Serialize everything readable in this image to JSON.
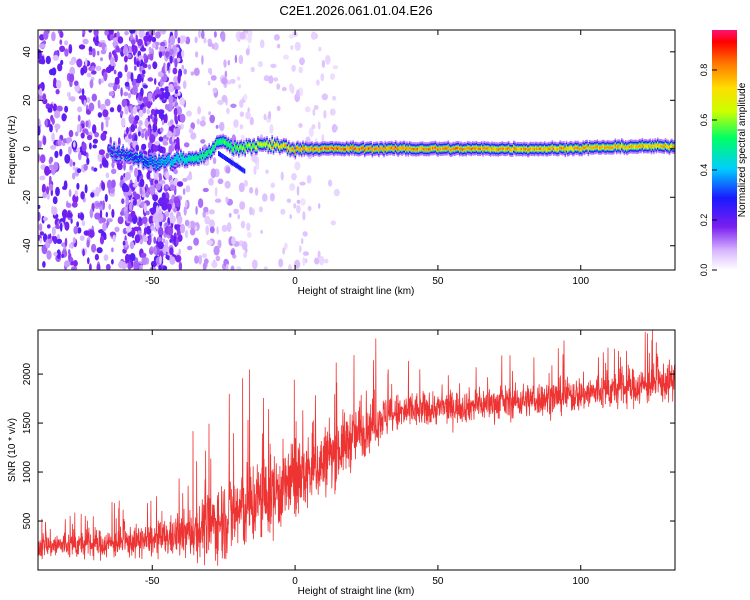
{
  "title": "C2E1.2026.061.01.04.E26",
  "chart_data": [
    {
      "type": "heatmap",
      "xlabel": "Height of straight line (km)",
      "ylabel": "Frequency (Hz)",
      "xlim": [
        -90,
        133
      ],
      "ylim": [
        -50,
        49
      ],
      "xticks": [
        -50,
        0,
        50,
        100
      ],
      "yticks": [
        -40,
        -20,
        0,
        20,
        40
      ],
      "xtick_labels": [
        "-50",
        "0",
        "50",
        "100"
      ],
      "ytick_labels": [
        "-40",
        "-20",
        "0",
        "20",
        "40"
      ],
      "colorbar": {
        "label": "Normalized spectral amplitude",
        "range": [
          0,
          0.96
        ],
        "ticks": [
          0.0,
          0.2,
          0.4,
          0.6,
          0.8
        ],
        "tick_labels": [
          "0.0",
          "0.2",
          "0.4",
          "0.6",
          "0.8"
        ]
      },
      "ridge": {
        "x": [
          -65,
          -58,
          -52,
          -48,
          -44,
          -40,
          -36,
          -32,
          -29,
          -27,
          -24,
          -21,
          -18,
          -15,
          -12,
          -8,
          -4,
          0,
          10,
          30,
          60,
          90,
          120,
          133
        ],
        "freq": [
          -1,
          -3,
          -5,
          -6,
          -5,
          -4,
          -4,
          -3,
          0,
          3,
          2,
          0,
          0,
          1,
          2,
          1,
          1,
          0,
          0,
          0,
          0,
          0,
          1,
          1
        ],
        "amplitude": [
          0.25,
          0.3,
          0.35,
          0.4,
          0.45,
          0.5,
          0.55,
          0.6,
          0.6,
          0.6,
          0.65,
          0.65,
          0.7,
          0.7,
          0.75,
          0.8,
          0.85,
          0.9,
          0.92,
          0.92,
          0.9,
          0.88,
          0.85,
          0.85
        ]
      }
    },
    {
      "type": "line",
      "xlabel": "Height of straight line (km)",
      "ylabel": "SNR (10 * v/v)",
      "xlim": [
        -90,
        133
      ],
      "ylim": [
        0,
        2450
      ],
      "xticks": [
        -50,
        0,
        50,
        100
      ],
      "yticks": [
        500,
        1000,
        1500,
        2000
      ],
      "xtick_labels": [
        "-50",
        "0",
        "50",
        "100"
      ],
      "ytick_labels": [
        "500",
        "1000",
        "1500",
        "2000"
      ],
      "series": [
        {
          "name": "SNR",
          "color": "#ee3333",
          "envelope_x": [
            -90,
            -70,
            -50,
            -40,
            -30,
            -20,
            -10,
            0,
            10,
            20,
            30,
            40,
            50,
            70,
            90,
            110,
            133
          ],
          "envelope_mean": [
            250,
            260,
            300,
            350,
            450,
            600,
            750,
            900,
            1100,
            1350,
            1550,
            1620,
            1650,
            1700,
            1760,
            1830,
            1930
          ],
          "envelope_spread": [
            120,
            130,
            150,
            200,
            330,
            420,
            400,
            350,
            320,
            280,
            200,
            170,
            150,
            150,
            160,
            170,
            180
          ]
        }
      ]
    }
  ]
}
